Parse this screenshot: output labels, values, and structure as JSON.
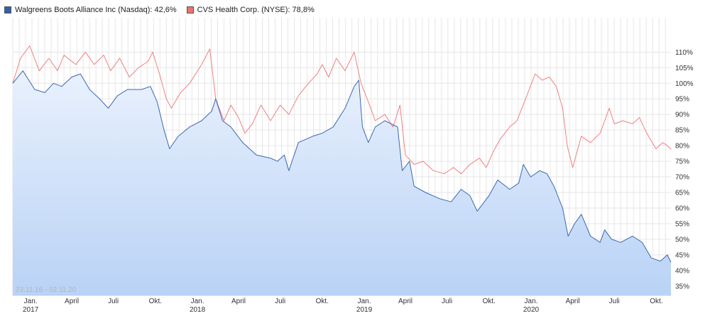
{
  "legend": {
    "walgreens": "Walgreens Boots Alliance Inc (Nasdaq): 42,6%",
    "cvs": "CVS Health Corp. (NYSE): 78,8%"
  },
  "range_label": "23.11.16 - 02.11.20",
  "colors": {
    "walgreens_line": "#3a68b4",
    "walgreens_fill_top": "#e9f1fd",
    "walgreens_fill_bottom": "#b9d2f6",
    "walgreens_swatch": "#2f5fb0",
    "cvs_line": "#f08080",
    "cvs_swatch": "#f07070",
    "grid": "#e6e6e6"
  },
  "chart_data": {
    "type": "line",
    "title": "",
    "xlabel": "",
    "ylabel": "",
    "ylim": [
      32,
      121
    ],
    "grid": true,
    "legend_position": "top-left",
    "x_range": [
      "2016-11-23",
      "2020-11-02"
    ],
    "yticks": [
      35,
      40,
      45,
      50,
      55,
      60,
      65,
      70,
      75,
      80,
      85,
      90,
      95,
      100,
      105,
      110
    ],
    "ytick_labels": [
      "35%",
      "40%",
      "45%",
      "50%",
      "55%",
      "60%",
      "65%",
      "70%",
      "75%",
      "80%",
      "85%",
      "90%",
      "95%",
      "100%",
      "105%",
      "110%"
    ],
    "xticks": [
      {
        "x": "2017-01-01",
        "label": "Jan.",
        "year": "2017"
      },
      {
        "x": "2017-04-01",
        "label": "April",
        "year": ""
      },
      {
        "x": "2017-07-01",
        "label": "Juli",
        "year": ""
      },
      {
        "x": "2017-10-01",
        "label": "Okt.",
        "year": ""
      },
      {
        "x": "2018-01-01",
        "label": "Jan.",
        "year": "2018"
      },
      {
        "x": "2018-04-01",
        "label": "April",
        "year": ""
      },
      {
        "x": "2018-07-01",
        "label": "Juli",
        "year": ""
      },
      {
        "x": "2018-10-01",
        "label": "Okt.",
        "year": ""
      },
      {
        "x": "2019-01-01",
        "label": "Jan.",
        "year": "2019"
      },
      {
        "x": "2019-04-01",
        "label": "April",
        "year": ""
      },
      {
        "x": "2019-07-01",
        "label": "Juli",
        "year": ""
      },
      {
        "x": "2019-10-01",
        "label": "Okt.",
        "year": ""
      },
      {
        "x": "2020-01-01",
        "label": "Jan.",
        "year": "2020"
      },
      {
        "x": "2020-04-01",
        "label": "April",
        "year": ""
      },
      {
        "x": "2020-07-01",
        "label": "Juli",
        "year": ""
      },
      {
        "x": "2020-10-01",
        "label": "Okt.",
        "year": ""
      }
    ],
    "series": [
      {
        "name": "Walgreens Boots Alliance Inc (Nasdaq)",
        "points": [
          [
            "2016-11-23",
            100
          ],
          [
            "2016-12-15",
            104
          ],
          [
            "2017-01-10",
            98
          ],
          [
            "2017-02-01",
            97
          ],
          [
            "2017-02-20",
            100
          ],
          [
            "2017-03-10",
            99
          ],
          [
            "2017-04-01",
            102
          ],
          [
            "2017-04-20",
            103
          ],
          [
            "2017-05-10",
            98
          ],
          [
            "2017-06-01",
            95
          ],
          [
            "2017-06-20",
            92
          ],
          [
            "2017-07-10",
            96
          ],
          [
            "2017-08-01",
            98
          ],
          [
            "2017-09-01",
            98
          ],
          [
            "2017-09-20",
            99
          ],
          [
            "2017-10-05",
            94
          ],
          [
            "2017-10-20",
            85
          ],
          [
            "2017-11-01",
            79
          ],
          [
            "2017-11-20",
            83
          ],
          [
            "2017-12-15",
            86
          ],
          [
            "2018-01-10",
            88
          ],
          [
            "2018-02-01",
            91
          ],
          [
            "2018-02-10",
            95
          ],
          [
            "2018-02-25",
            88
          ],
          [
            "2018-03-15",
            86
          ],
          [
            "2018-04-10",
            81
          ],
          [
            "2018-05-10",
            77
          ],
          [
            "2018-06-10",
            76
          ],
          [
            "2018-06-25",
            75
          ],
          [
            "2018-07-10",
            77
          ],
          [
            "2018-07-20",
            72
          ],
          [
            "2018-08-10",
            81
          ],
          [
            "2018-09-10",
            83
          ],
          [
            "2018-10-01",
            84
          ],
          [
            "2018-10-25",
            86
          ],
          [
            "2018-11-20",
            92
          ],
          [
            "2018-12-10",
            99
          ],
          [
            "2018-12-20",
            101
          ],
          [
            "2018-12-28",
            86
          ],
          [
            "2019-01-10",
            81
          ],
          [
            "2019-01-25",
            86
          ],
          [
            "2019-02-15",
            88
          ],
          [
            "2019-03-15",
            86
          ],
          [
            "2019-03-25",
            72
          ],
          [
            "2019-04-10",
            75
          ],
          [
            "2019-04-20",
            67
          ],
          [
            "2019-05-15",
            65
          ],
          [
            "2019-06-15",
            63
          ],
          [
            "2019-07-10",
            62
          ],
          [
            "2019-08-01",
            66
          ],
          [
            "2019-08-20",
            64
          ],
          [
            "2019-09-05",
            59
          ],
          [
            "2019-10-01",
            64
          ],
          [
            "2019-10-20",
            69
          ],
          [
            "2019-11-15",
            66
          ],
          [
            "2019-12-05",
            68
          ],
          [
            "2019-12-15",
            74
          ],
          [
            "2019-12-31",
            70
          ],
          [
            "2020-01-20",
            72
          ],
          [
            "2020-02-05",
            71
          ],
          [
            "2020-02-20",
            67
          ],
          [
            "2020-03-10",
            60
          ],
          [
            "2020-03-22",
            51
          ],
          [
            "2020-04-05",
            55
          ],
          [
            "2020-04-20",
            58
          ],
          [
            "2020-05-10",
            51
          ],
          [
            "2020-05-31",
            49
          ],
          [
            "2020-06-10",
            53
          ],
          [
            "2020-06-25",
            50
          ],
          [
            "2020-07-15",
            49
          ],
          [
            "2020-08-10",
            51
          ],
          [
            "2020-08-31",
            49
          ],
          [
            "2020-09-20",
            44
          ],
          [
            "2020-10-10",
            43
          ],
          [
            "2020-10-25",
            45
          ],
          [
            "2020-11-02",
            42.6
          ]
        ]
      },
      {
        "name": "CVS Health Corp. (NYSE)",
        "points": [
          [
            "2016-11-23",
            100
          ],
          [
            "2016-12-10",
            108
          ],
          [
            "2016-12-30",
            112
          ],
          [
            "2017-01-20",
            104
          ],
          [
            "2017-02-10",
            108
          ],
          [
            "2017-03-01",
            104
          ],
          [
            "2017-03-15",
            109
          ],
          [
            "2017-04-10",
            106
          ],
          [
            "2017-05-01",
            110
          ],
          [
            "2017-05-20",
            106
          ],
          [
            "2017-06-10",
            109
          ],
          [
            "2017-06-25",
            104
          ],
          [
            "2017-07-15",
            108
          ],
          [
            "2017-08-05",
            102
          ],
          [
            "2017-08-25",
            105
          ],
          [
            "2017-09-15",
            107
          ],
          [
            "2017-09-25",
            110
          ],
          [
            "2017-10-10",
            103
          ],
          [
            "2017-10-25",
            95
          ],
          [
            "2017-11-05",
            92
          ],
          [
            "2017-11-25",
            97
          ],
          [
            "2017-12-15",
            100
          ],
          [
            "2018-01-10",
            106
          ],
          [
            "2018-01-28",
            111
          ],
          [
            "2018-02-10",
            95
          ],
          [
            "2018-02-28",
            88
          ],
          [
            "2018-03-15",
            93
          ],
          [
            "2018-04-01",
            89
          ],
          [
            "2018-04-15",
            84
          ],
          [
            "2018-05-01",
            87
          ],
          [
            "2018-05-20",
            93
          ],
          [
            "2018-06-10",
            88
          ],
          [
            "2018-07-01",
            93
          ],
          [
            "2018-07-20",
            90
          ],
          [
            "2018-08-10",
            96
          ],
          [
            "2018-09-01",
            100
          ],
          [
            "2018-09-20",
            103
          ],
          [
            "2018-10-01",
            106
          ],
          [
            "2018-10-15",
            102
          ],
          [
            "2018-11-01",
            108
          ],
          [
            "2018-11-20",
            104
          ],
          [
            "2018-12-10",
            110
          ],
          [
            "2018-12-25",
            100
          ],
          [
            "2019-01-10",
            94
          ],
          [
            "2019-01-25",
            88
          ],
          [
            "2019-02-15",
            90
          ],
          [
            "2019-03-05",
            86
          ],
          [
            "2019-03-20",
            93
          ],
          [
            "2019-04-01",
            77
          ],
          [
            "2019-04-20",
            74
          ],
          [
            "2019-05-10",
            75
          ],
          [
            "2019-06-01",
            72
          ],
          [
            "2019-06-25",
            71
          ],
          [
            "2019-07-15",
            73
          ],
          [
            "2019-08-01",
            71
          ],
          [
            "2019-08-20",
            74
          ],
          [
            "2019-09-10",
            76
          ],
          [
            "2019-09-25",
            73
          ],
          [
            "2019-10-10",
            78
          ],
          [
            "2019-10-25",
            82
          ],
          [
            "2019-11-15",
            86
          ],
          [
            "2019-12-01",
            88
          ],
          [
            "2019-12-20",
            95
          ],
          [
            "2020-01-10",
            103
          ],
          [
            "2020-01-25",
            101
          ],
          [
            "2020-02-10",
            102
          ],
          [
            "2020-02-25",
            99
          ],
          [
            "2020-03-10",
            92
          ],
          [
            "2020-03-20",
            80
          ],
          [
            "2020-04-01",
            73
          ],
          [
            "2020-04-20",
            83
          ],
          [
            "2020-05-10",
            81
          ],
          [
            "2020-05-31",
            84
          ],
          [
            "2020-06-10",
            88
          ],
          [
            "2020-06-20",
            92
          ],
          [
            "2020-07-01",
            87
          ],
          [
            "2020-07-20",
            88
          ],
          [
            "2020-08-10",
            87
          ],
          [
            "2020-08-25",
            89
          ],
          [
            "2020-09-10",
            84
          ],
          [
            "2020-09-30",
            79
          ],
          [
            "2020-10-15",
            81
          ],
          [
            "2020-10-25",
            80
          ],
          [
            "2020-11-02",
            78.8
          ]
        ]
      }
    ]
  }
}
